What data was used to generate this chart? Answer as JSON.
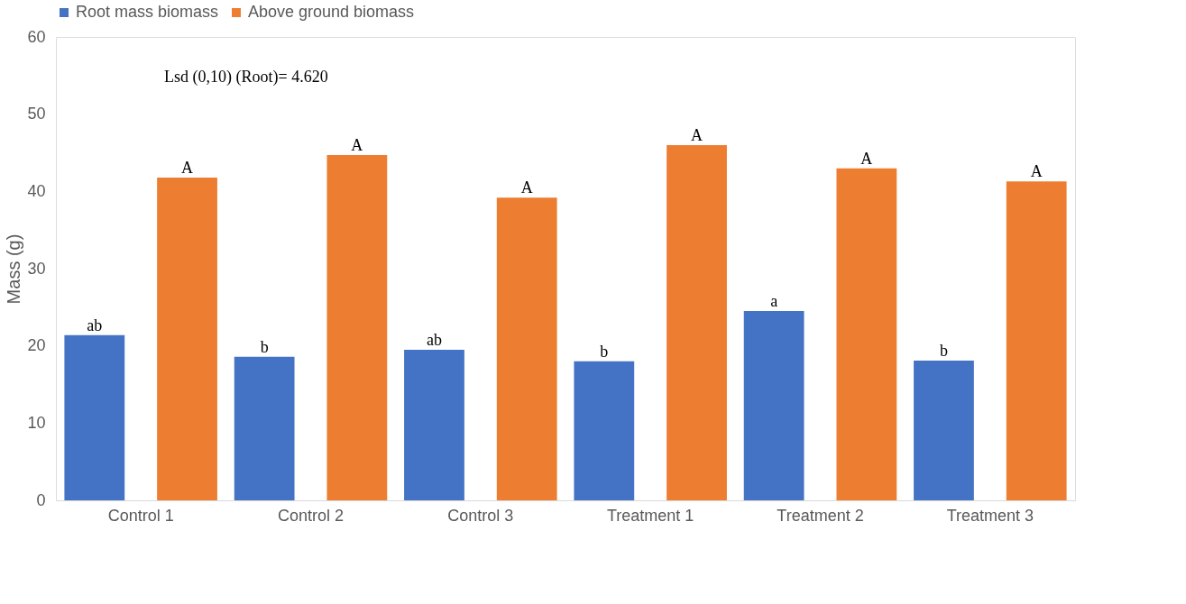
{
  "chart_data": {
    "type": "bar",
    "ylabel": "Mass (g)",
    "categories": [
      "Control 1",
      "Control 2",
      "Control 3",
      "Treatment 1",
      "Treatment 2",
      "Treatment 3"
    ],
    "series": [
      {
        "name": "Root mass biomass",
        "color": "#4472c4",
        "values": [
          21.4,
          18.6,
          19.5,
          18.0,
          24.5,
          18.1
        ],
        "value_labels": [
          "ab",
          "b",
          "ab",
          "b",
          "a",
          "b"
        ]
      },
      {
        "name": "Above ground biomass",
        "color": "#ed7d31",
        "values": [
          41.8,
          44.7,
          39.2,
          46.0,
          43.0,
          41.3
        ],
        "value_labels": [
          "A",
          "A",
          "A",
          "A",
          "A",
          "A"
        ]
      }
    ],
    "ylim": [
      0,
      60
    ],
    "yticks": [
      0,
      10,
      20,
      30,
      40,
      50,
      60
    ],
    "grid": false,
    "legend": "top",
    "annotations": [
      "Lsd (0,10) (Root)= 4.620"
    ]
  }
}
